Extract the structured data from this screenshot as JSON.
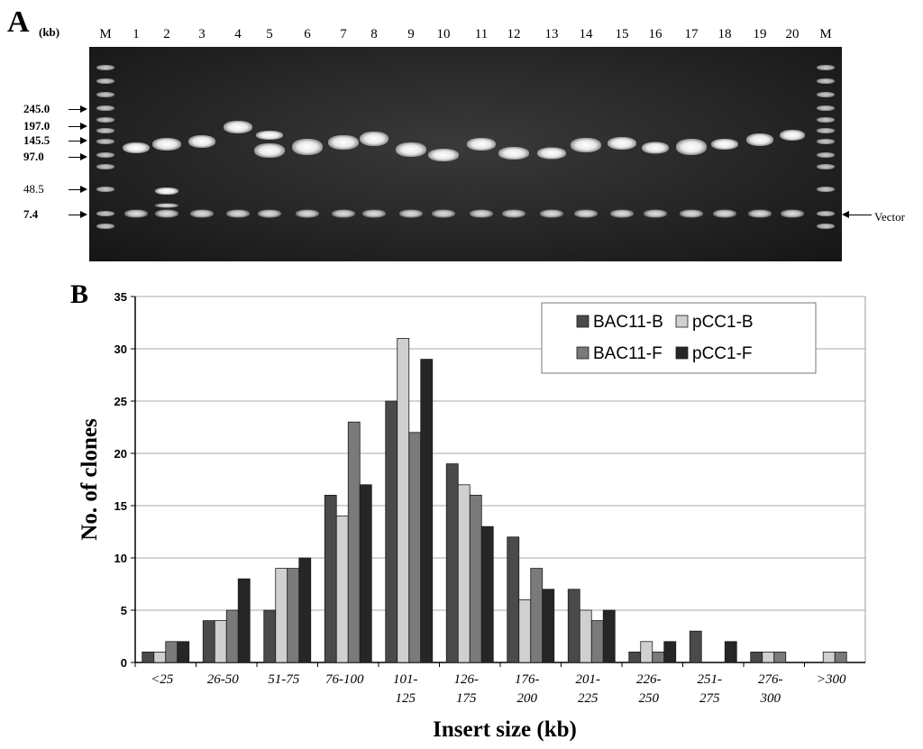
{
  "panel_a": {
    "label": "A",
    "unit_label": "(kb)",
    "lanes": [
      "M",
      "1",
      "2",
      "3",
      "4",
      "5",
      "6",
      "7",
      "8",
      "9",
      "10",
      "11",
      "12",
      "13",
      "14",
      "15",
      "16",
      "17",
      "18",
      "19",
      "20",
      "M"
    ],
    "markers": [
      {
        "label": "245.0"
      },
      {
        "label": "197.0"
      },
      {
        "label": "145.5"
      },
      {
        "label": "97.0"
      },
      {
        "label": "48.5"
      },
      {
        "label": "7.4"
      }
    ],
    "vector_label": "Vector"
  },
  "panel_b": {
    "label": "B"
  },
  "chart_data": {
    "type": "bar",
    "title": "",
    "xlabel": "Insert size (kb)",
    "ylabel": "No. of clones",
    "ylim": [
      0,
      35
    ],
    "yticks": [
      0,
      5,
      10,
      15,
      20,
      25,
      30,
      35
    ],
    "grid": true,
    "legend_position": "top-right",
    "categories": [
      [
        "<25"
      ],
      [
        "26-50"
      ],
      [
        "51-75"
      ],
      [
        "76-100"
      ],
      [
        "101-",
        "125"
      ],
      [
        "126-",
        "175"
      ],
      [
        "176-",
        "200"
      ],
      [
        "201-",
        "225"
      ],
      [
        "226-",
        "250"
      ],
      [
        "251-",
        "275"
      ],
      [
        "276-",
        "300"
      ],
      [
        ">300"
      ]
    ],
    "series": [
      {
        "name": "BAC11-B",
        "color": "#4a4a4a",
        "values": [
          1,
          4,
          5,
          16,
          25,
          19,
          12,
          7,
          1,
          3,
          1,
          0
        ]
      },
      {
        "name": "pCC1-B",
        "color": "#d0d0d0",
        "values": [
          1,
          4,
          9,
          14,
          31,
          17,
          6,
          5,
          2,
          0,
          1,
          1
        ]
      },
      {
        "name": "BAC11-F",
        "color": "#7a7a7a",
        "values": [
          2,
          5,
          9,
          23,
          22,
          16,
          9,
          4,
          1,
          0,
          1,
          1
        ]
      },
      {
        "name": "pCC1-F",
        "color": "#262626",
        "values": [
          2,
          8,
          10,
          17,
          29,
          13,
          7,
          5,
          2,
          2,
          0,
          0
        ]
      }
    ]
  }
}
